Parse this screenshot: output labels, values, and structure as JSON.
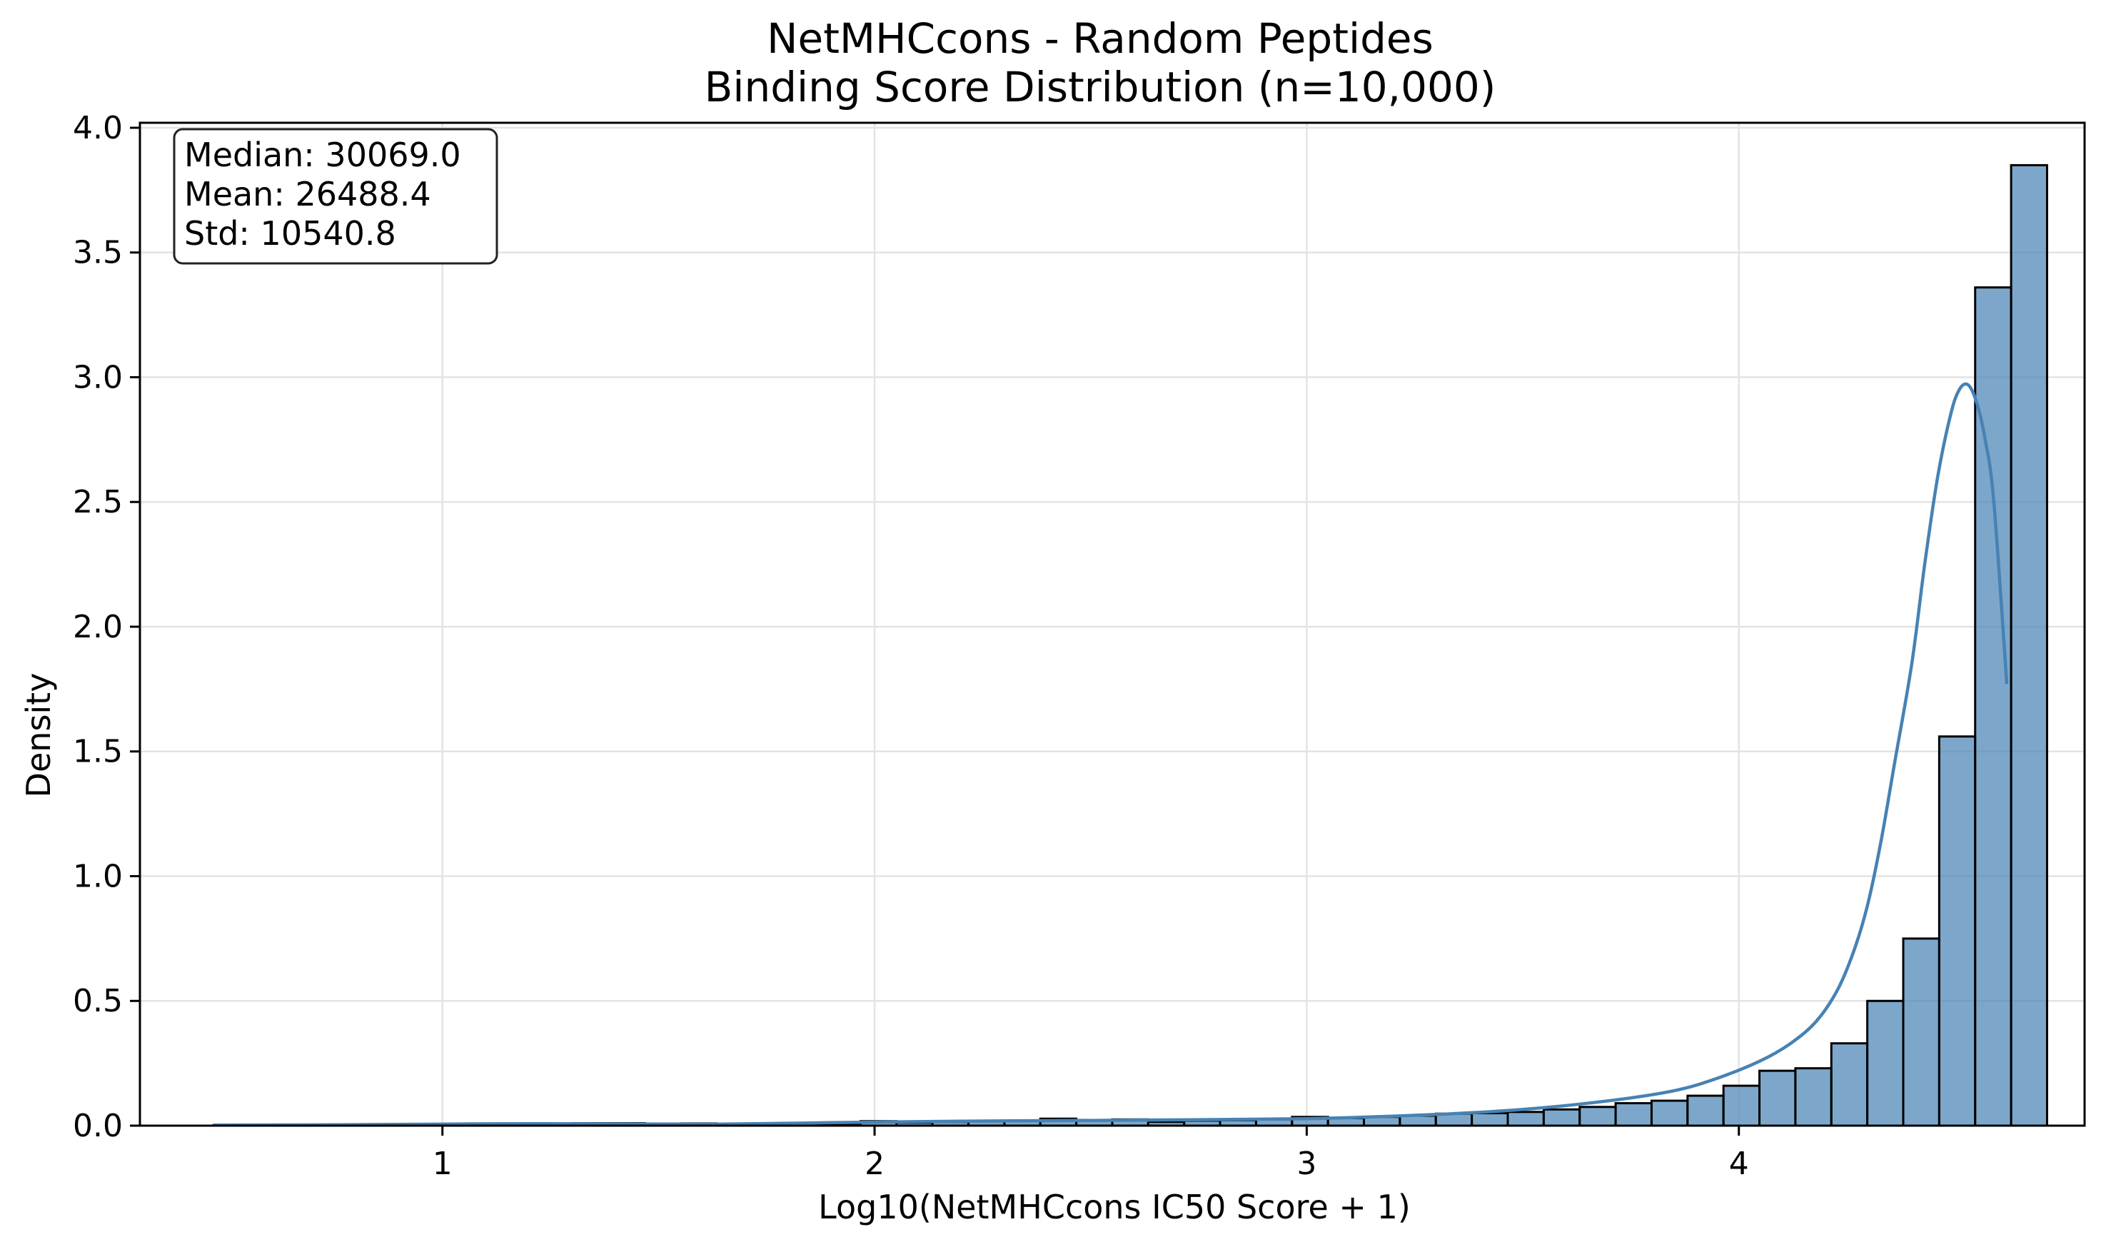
{
  "chart_data": {
    "type": "bar",
    "title": [
      "NetMHCcons - Random Peptides",
      "Binding Score Distribution (n=10,000)"
    ],
    "xlabel": "Log10(NetMHCcons IC50 Score + 1)",
    "ylabel": "Density",
    "xlim": [
      0.3,
      4.8
    ],
    "ylim": [
      0,
      4.02
    ],
    "xticks": [
      1,
      2,
      3,
      4
    ],
    "xtick_labels": [
      "1",
      "2",
      "3",
      "4"
    ],
    "yticks": [
      0.0,
      0.5,
      1.0,
      1.5,
      2.0,
      2.5,
      3.0,
      3.5,
      4.0
    ],
    "ytick_labels": [
      "0.0",
      "0.5",
      "1.0",
      "1.5",
      "2.0",
      "2.5",
      "3.0",
      "3.5",
      "4.0"
    ],
    "grid": true,
    "bar_color": "#4682b4",
    "bar_edge_color": "#000000",
    "kde_color": "#4682b4",
    "stats": {
      "lines": [
        "Median: 30069.0",
        "Mean: 26488.4",
        "Std: 10540.8"
      ],
      "placement": "top-left"
    },
    "bins": {
      "start": 0.47,
      "width": 0.0832,
      "density": [
        0.002,
        0.002,
        0.003,
        0.003,
        0.004,
        0.004,
        0.005,
        0.006,
        0.007,
        0.008,
        0.01,
        0.01,
        0.008,
        0.009,
        0.007,
        0.008,
        0.006,
        0.007,
        0.018,
        0.012,
        0.015,
        0.017,
        0.02,
        0.028,
        0.022,
        0.025,
        0.015,
        0.02,
        0.022,
        0.025,
        0.035,
        0.03,
        0.035,
        0.04,
        0.048,
        0.05,
        0.055,
        0.065,
        0.075,
        0.09,
        0.1,
        0.12,
        0.16,
        0.22,
        0.23,
        0.33,
        0.5,
        0.75,
        1.56,
        3.36,
        3.85
      ]
    },
    "kde": {
      "x": [
        0.47,
        0.8,
        1.2,
        1.6,
        1.9,
        2.2,
        2.6,
        3.0,
        3.3,
        3.5,
        3.7,
        3.85,
        3.95,
        4.05,
        4.12,
        4.18,
        4.23,
        4.27,
        4.3,
        4.33,
        4.36,
        4.4,
        4.43,
        4.46,
        4.49,
        4.51,
        4.53,
        4.55,
        4.57,
        4.59,
        4.62
      ],
      "y": [
        0.002,
        0.004,
        0.008,
        0.006,
        0.012,
        0.018,
        0.022,
        0.028,
        0.045,
        0.065,
        0.1,
        0.14,
        0.19,
        0.26,
        0.33,
        0.42,
        0.55,
        0.72,
        0.9,
        1.15,
        1.45,
        1.85,
        2.25,
        2.6,
        2.85,
        2.95,
        2.97,
        2.9,
        2.75,
        2.5,
        1.77
      ]
    }
  }
}
